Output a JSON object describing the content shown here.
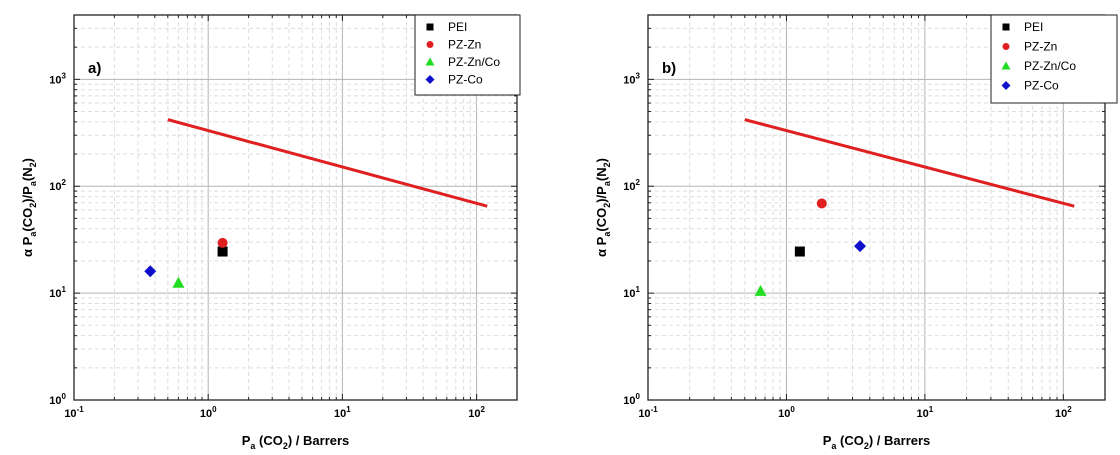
{
  "chart_data": [
    {
      "type": "scatter",
      "panel_label": "a)",
      "x_scale": "log",
      "y_scale": "log",
      "xlim": [
        0.1,
        200
      ],
      "ylim": [
        1,
        4000
      ],
      "x_ticks": [
        0.1,
        1,
        10,
        100
      ],
      "y_ticks": [
        1,
        10,
        100,
        1000
      ],
      "xlabel": {
        "main": "P",
        "sub": "a",
        "rest": " (CO",
        "sub2": "2",
        "tail": ") / Barrers"
      },
      "ylabel": {
        "p1": "α P",
        "s1": "a",
        "p2": "(CO",
        "s2": "2",
        "p3": ")/P",
        "s3": "a",
        "p4": "(N",
        "s4": "2",
        "p5": ")"
      },
      "grid": true,
      "legend_position": "top-right",
      "upper_bound_line": {
        "color": "#e02020",
        "x": [
          0.5,
          120
        ],
        "y": [
          420,
          65
        ]
      },
      "series": [
        {
          "name": "PEI",
          "marker": "square",
          "color": "#000000",
          "x": [
            1.28
          ],
          "y": [
            24.5
          ]
        },
        {
          "name": "PZ-Zn",
          "marker": "circle",
          "color": "#e02020",
          "x": [
            1.28
          ],
          "y": [
            29.5
          ]
        },
        {
          "name": "PZ-Zn/Co",
          "marker": "triangle",
          "color": "#22dd22",
          "x": [
            0.6
          ],
          "y": [
            12.5
          ]
        },
        {
          "name": "PZ-Co",
          "marker": "diamond",
          "color": "#1010cc",
          "x": [
            0.37
          ],
          "y": [
            16
          ]
        }
      ]
    },
    {
      "type": "scatter",
      "panel_label": "b)",
      "x_scale": "log",
      "y_scale": "log",
      "xlim": [
        0.1,
        200
      ],
      "ylim": [
        1,
        4000
      ],
      "x_ticks": [
        0.1,
        1,
        10,
        100
      ],
      "y_ticks": [
        1,
        10,
        100,
        1000
      ],
      "xlabel": {
        "main": "P",
        "sub": "a",
        "rest": " (CO",
        "sub2": "2",
        "tail": ") / Barrers"
      },
      "ylabel": {
        "p1": "α P",
        "s1": "a",
        "p2": "(CO",
        "s2": "2",
        "p3": ")/P",
        "s3": "a",
        "p4": "(N",
        "s4": "2",
        "p5": ")"
      },
      "grid": true,
      "legend_position": "top-right",
      "upper_bound_line": {
        "color": "#e02020",
        "x": [
          0.5,
          120
        ],
        "y": [
          420,
          65
        ]
      },
      "series": [
        {
          "name": "PEI",
          "marker": "square",
          "color": "#000000",
          "x": [
            1.25
          ],
          "y": [
            24.5
          ]
        },
        {
          "name": "PZ-Zn",
          "marker": "circle",
          "color": "#e02020",
          "x": [
            1.8
          ],
          "y": [
            69
          ]
        },
        {
          "name": "PZ-Zn/Co",
          "marker": "triangle",
          "color": "#22dd22",
          "x": [
            0.65
          ],
          "y": [
            10.5
          ]
        },
        {
          "name": "PZ-Co",
          "marker": "diamond",
          "color": "#1010cc",
          "x": [
            3.4
          ],
          "y": [
            27.5
          ]
        }
      ]
    }
  ]
}
